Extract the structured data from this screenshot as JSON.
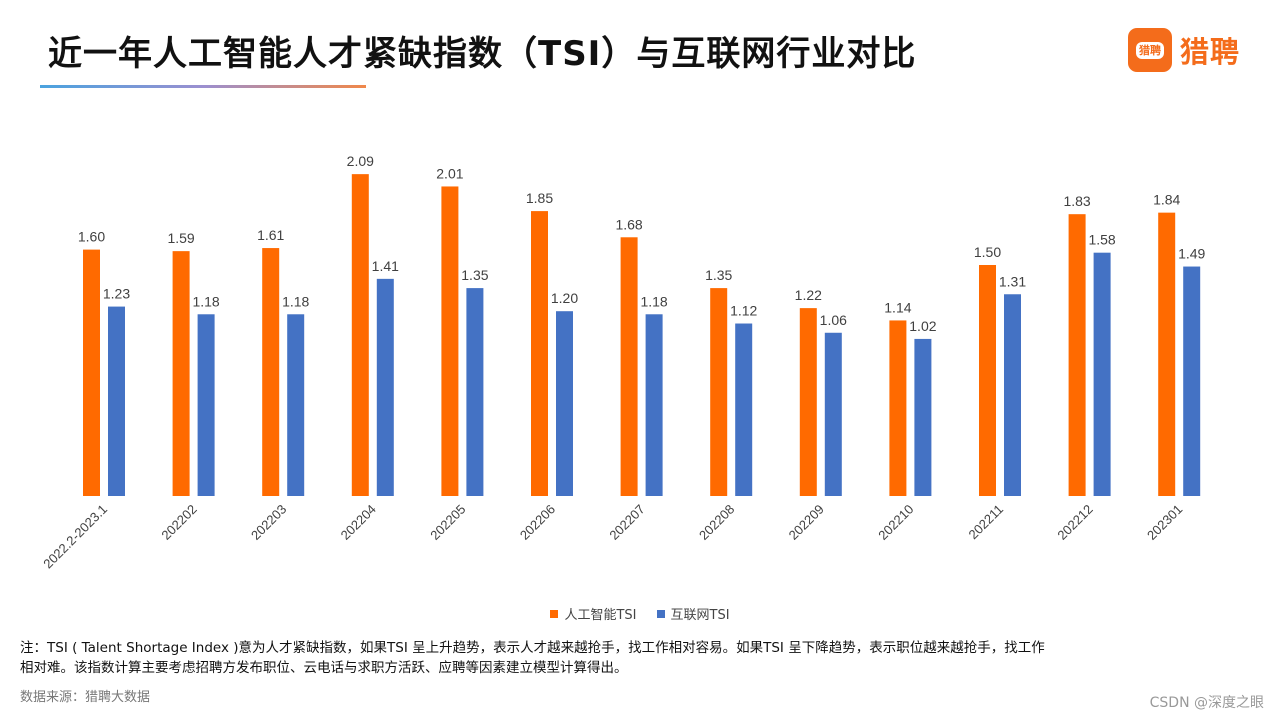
{
  "header": {
    "title": "近一年人工智能人才紧缺指数（TSI）与互联网行业对比"
  },
  "brand": {
    "icon_text": "猎聘",
    "name": "猎聘",
    "icon_name": "liepin-logo-icon"
  },
  "chart_data": {
    "type": "bar",
    "title": "近一年人工智能人才紧缺指数（TSI）与互联网行业对比",
    "categories": [
      "2022.2-2023.1",
      "202202",
      "202203",
      "202204",
      "202205",
      "202206",
      "202207",
      "202208",
      "202209",
      "202210",
      "202211",
      "202212",
      "202301"
    ],
    "series": [
      {
        "name": "人工智能TSI",
        "color": "#ff6a00",
        "values": [
          1.6,
          1.59,
          1.61,
          2.09,
          2.01,
          1.85,
          1.68,
          1.35,
          1.22,
          1.14,
          1.5,
          1.83,
          1.84
        ]
      },
      {
        "name": "互联网TSI",
        "color": "#4472c4",
        "values": [
          1.23,
          1.18,
          1.18,
          1.41,
          1.35,
          1.2,
          1.18,
          1.12,
          1.06,
          1.02,
          1.31,
          1.58,
          1.49
        ]
      }
    ],
    "ylim": [
      0,
      2.2
    ],
    "xlabel": "",
    "ylabel": "",
    "grid": false,
    "legend": "bottom-center",
    "value_format": "2-decimals"
  },
  "footer": {
    "note_line1": "注：TSI ( Talent Shortage Index )意为人才紧缺指数，如果TSI 呈上升趋势，表示人才越来越抢手，找工作相对容易。如果TSI 呈下降趋势，表示职位越来越抢手，找工作",
    "note_line2": "相对难。该指数计算主要考虑招聘方发布职位、云电话与求职方活跃、应聘等因素建立模型计算得出。",
    "source": "数据来源：猎聘大数据",
    "watermark": "CSDN @深度之眼"
  }
}
